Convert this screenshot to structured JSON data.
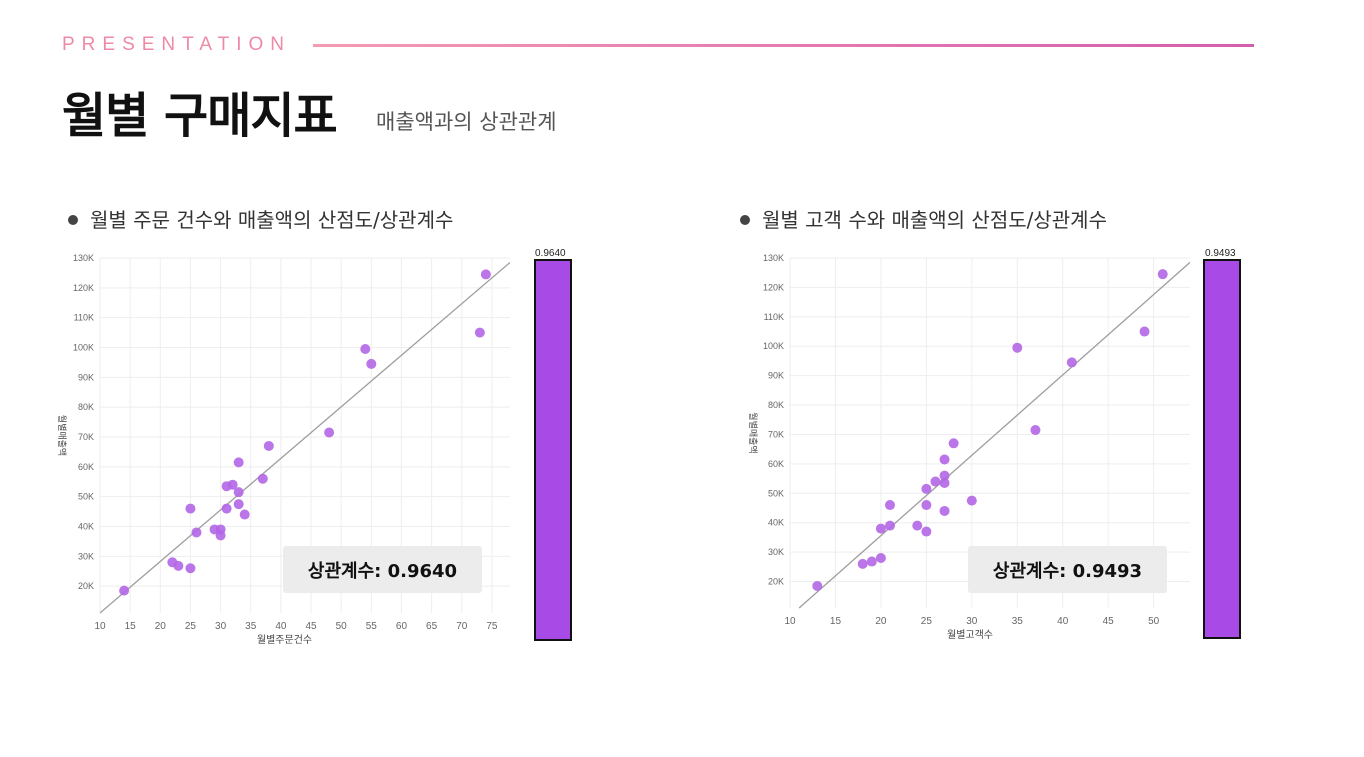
{
  "header": {
    "kicker": "PRESENTATION",
    "title": "월별 구매지표",
    "subtitle": "매출액과의 상관관계"
  },
  "sections": [
    {
      "label": "월별 주문 건수와 매출액의 산점도/상관계수",
      "corr_text": "상관계수: 0.9640",
      "bar_value": "0.9640"
    },
    {
      "label": "월별 고객 수와 매출액의 산점도/상관계수",
      "corr_text": "상관계수: 0.9493",
      "bar_value": "0.9493"
    }
  ],
  "colors": {
    "point": "#b266e6",
    "bar": "#a84ae6",
    "line": "#9e9e9e",
    "grid": "#eeeeee"
  },
  "chart_data": [
    {
      "type": "scatter",
      "xlabel": "월별주문건수",
      "ylabel": "월별매출액",
      "xlim": [
        10,
        78
      ],
      "ylim": [
        11000,
        130000
      ],
      "xticks": [
        10,
        15,
        20,
        25,
        30,
        35,
        40,
        45,
        50,
        55,
        60,
        65,
        70,
        75
      ],
      "yticks": [
        20000,
        30000,
        40000,
        50000,
        60000,
        70000,
        80000,
        90000,
        100000,
        110000,
        120000,
        130000
      ],
      "ytick_labels": [
        "20K",
        "30K",
        "40K",
        "50K",
        "60K",
        "70K",
        "80K",
        "90K",
        "100K",
        "110K",
        "120K",
        "130K"
      ],
      "points": [
        [
          14,
          18500
        ],
        [
          22,
          28000
        ],
        [
          23,
          26800
        ],
        [
          25,
          26000
        ],
        [
          25,
          46000
        ],
        [
          26,
          38000
        ],
        [
          29,
          39000
        ],
        [
          30,
          39000
        ],
        [
          30,
          37000
        ],
        [
          31,
          46000
        ],
        [
          31,
          53500
        ],
        [
          32,
          54000
        ],
        [
          33,
          51500
        ],
        [
          33,
          47500
        ],
        [
          33,
          61500
        ],
        [
          34,
          44000
        ],
        [
          37,
          56000
        ],
        [
          38,
          67000
        ],
        [
          48,
          71500
        ],
        [
          54,
          99500
        ],
        [
          55,
          94500
        ],
        [
          73,
          105000
        ],
        [
          74,
          124500
        ]
      ],
      "trend": [
        [
          10,
          11000
        ],
        [
          78,
          128500
        ]
      ],
      "correlation": 0.964
    },
    {
      "type": "scatter",
      "xlabel": "월별고객수",
      "ylabel": "월별매출액",
      "xlim": [
        10,
        54
      ],
      "ylim": [
        11000,
        130000
      ],
      "xticks": [
        10,
        15,
        20,
        25,
        30,
        35,
        40,
        45,
        50
      ],
      "yticks": [
        20000,
        30000,
        40000,
        50000,
        60000,
        70000,
        80000,
        90000,
        100000,
        110000,
        120000,
        130000
      ],
      "ytick_labels": [
        "20K",
        "30K",
        "40K",
        "50K",
        "60K",
        "70K",
        "80K",
        "90K",
        "100K",
        "110K",
        "120K",
        "130K"
      ],
      "points": [
        [
          13,
          18500
        ],
        [
          18,
          26000
        ],
        [
          19,
          26800
        ],
        [
          20,
          28000
        ],
        [
          20,
          38000
        ],
        [
          21,
          46000
        ],
        [
          21,
          39000
        ],
        [
          24,
          39000
        ],
        [
          25,
          37000
        ],
        [
          25,
          46000
        ],
        [
          25,
          51500
        ],
        [
          26,
          54000
        ],
        [
          27,
          61500
        ],
        [
          27,
          56000
        ],
        [
          27,
          53500
        ],
        [
          27,
          44000
        ],
        [
          28,
          67000
        ],
        [
          30,
          47500
        ],
        [
          35,
          99500
        ],
        [
          37,
          71500
        ],
        [
          41,
          94500
        ],
        [
          49,
          105000
        ],
        [
          51,
          124500
        ]
      ],
      "trend": [
        [
          11,
          11000
        ],
        [
          54,
          128500
        ]
      ],
      "correlation": 0.9493
    }
  ]
}
